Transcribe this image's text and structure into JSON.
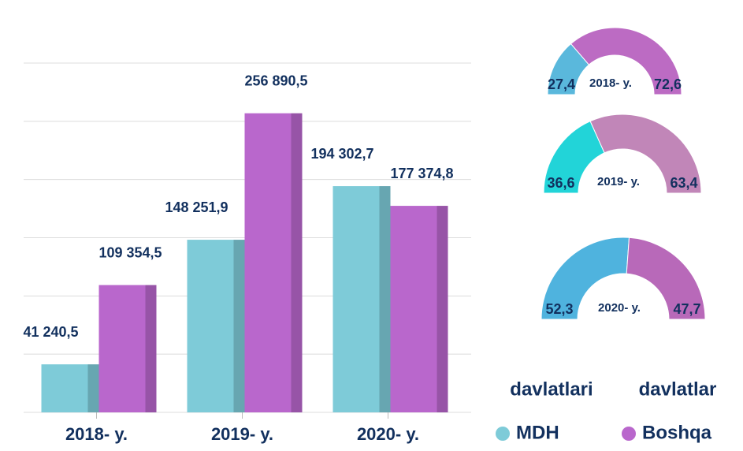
{
  "chart_data": [
    {
      "type": "bar",
      "categories": [
        "2018- y.",
        "2019- y.",
        "2020- y."
      ],
      "series": [
        {
          "name": "MDH",
          "name_suffix": "davlatlari",
          "color": "#7ecbd8",
          "values": [
            41240.5,
            148251.9,
            194302.7
          ],
          "value_labels": [
            "41 240,5",
            "148 251,9",
            "194 302,7"
          ]
        },
        {
          "name": "Boshqa",
          "name_suffix": "davlatlar",
          "color": "#b967cc",
          "values": [
            109354.5,
            256890.5,
            177374.8
          ],
          "value_labels": [
            "109 354,5",
            "256 890,5",
            "177 374,8"
          ]
        }
      ],
      "ylim": [
        0,
        300000
      ],
      "ygrid": [
        0,
        50000,
        100000,
        150000,
        200000,
        250000,
        300000
      ]
    },
    {
      "type": "semi-donut",
      "title": "2018- y.",
      "values": [
        27.4,
        72.6
      ],
      "value_labels": [
        "27,4",
        "72,6"
      ],
      "colors": [
        "#5ab8dc",
        "#bc6bc3"
      ]
    },
    {
      "type": "semi-donut",
      "title": "2019- y.",
      "values": [
        36.6,
        63.4
      ],
      "value_labels": [
        "36,6",
        "63,4"
      ],
      "colors": [
        "#22d4d8",
        "#c186b8"
      ]
    },
    {
      "type": "semi-donut",
      "title": "2020- y.",
      "values": [
        52.3,
        47.7
      ],
      "value_labels": [
        "52,3",
        "47,7"
      ],
      "colors": [
        "#4fb3de",
        "#b869b9"
      ]
    }
  ]
}
